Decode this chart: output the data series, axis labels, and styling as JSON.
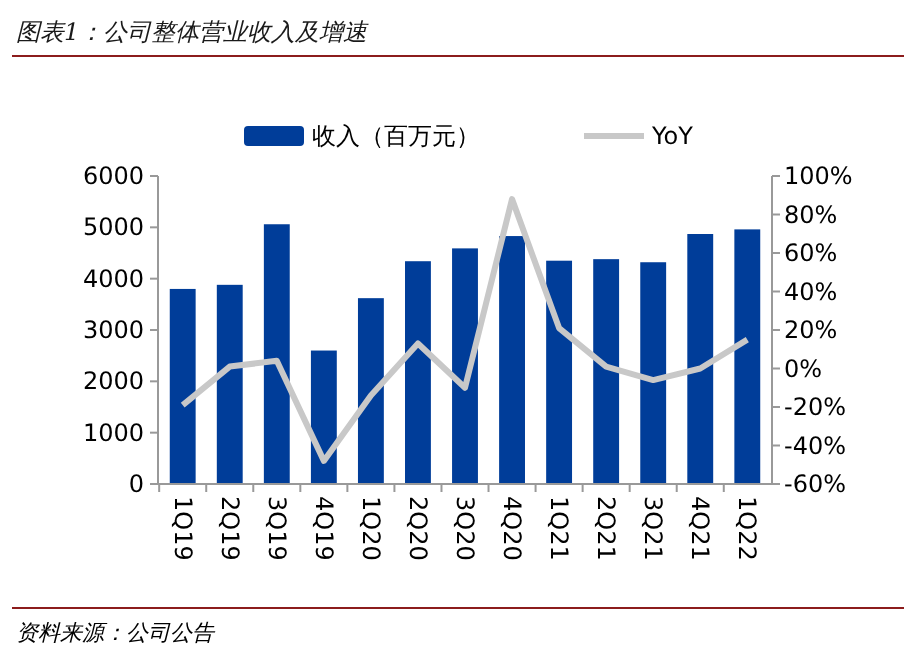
{
  "chart_data": {
    "type": "bar",
    "title": "图表1：公司整体营业收入及增速",
    "categories": [
      "1Q19",
      "2Q19",
      "3Q19",
      "4Q19",
      "1Q20",
      "2Q20",
      "3Q20",
      "4Q20",
      "1Q21",
      "2Q21",
      "3Q21",
      "4Q21",
      "1Q22"
    ],
    "series": [
      {
        "name": "收入（百万元）",
        "color": "#003d99",
        "values": [
          3800,
          3880,
          5060,
          2600,
          3620,
          4340,
          4590,
          4830,
          4350,
          4380,
          4320,
          4870,
          4960
        ]
      },
      {
        "name": "YoY",
        "type": "line",
        "axis": "y2",
        "color": "#c8c8c8",
        "values": [
          -19,
          1,
          4,
          -48,
          -14,
          13,
          -10,
          88,
          21,
          1,
          -6,
          0,
          15
        ]
      }
    ],
    "ylim": [
      0,
      6000
    ],
    "yticks": [
      0,
      1000,
      2000,
      3000,
      4000,
      5000,
      6000
    ],
    "y2lim": [
      -60,
      100
    ],
    "y2ticks": [
      {
        "value": -60,
        "label": "-60%"
      },
      {
        "value": -40,
        "label": "-40%"
      },
      {
        "value": -20,
        "label": "-20%"
      },
      {
        "value": 0,
        "label": "0%"
      },
      {
        "value": 20,
        "label": "20%"
      },
      {
        "value": 40,
        "label": "40%"
      },
      {
        "value": 60,
        "label": "60%"
      },
      {
        "value": 80,
        "label": "80%"
      },
      {
        "value": 100,
        "label": "100%"
      }
    ],
    "legend": "top",
    "marker": "none",
    "annotations": [
      "资料来源：公司公告"
    ]
  }
}
